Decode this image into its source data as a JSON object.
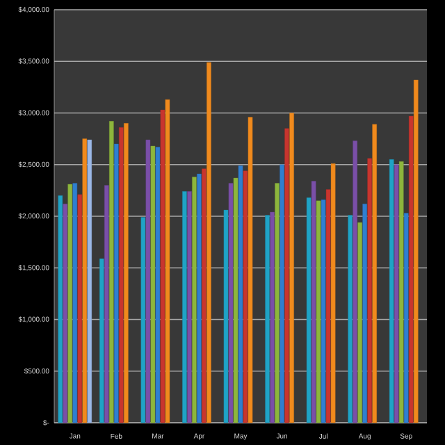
{
  "chart_data": {
    "type": "bar",
    "categories": [
      "Jan",
      "Feb",
      "Mar",
      "Apr",
      "May",
      "Jun",
      "Jul",
      "Aug",
      "Sep"
    ],
    "series": [
      {
        "color": "#1fa3c6",
        "values": [
          2200,
          1590,
          1990,
          2240,
          2060,
          2010,
          2180,
          2010,
          2550
        ]
      },
      {
        "color": "#7a4fa8",
        "values": [
          2120,
          2300,
          2740,
          2240,
          2320,
          2040,
          2340,
          2730,
          2500
        ]
      },
      {
        "color": "#8db63c",
        "values": [
          2310,
          2920,
          2680,
          2380,
          2370,
          2320,
          2150,
          1940,
          2530
        ]
      },
      {
        "color": "#2f7fd0",
        "values": [
          2320,
          2700,
          2670,
          2410,
          2490,
          2500,
          2160,
          2120,
          2030
        ]
      },
      {
        "color": "#c8352e",
        "values": [
          2210,
          2860,
          3030,
          2460,
          2440,
          2850,
          2260,
          2560,
          2970
        ]
      },
      {
        "color": "#f08a1d",
        "values": [
          2750,
          2900,
          3130,
          3490,
          2960,
          3000,
          2510,
          2890,
          3320
        ]
      },
      {
        "color": "#9bb7e6",
        "values": [
          2740,
          null,
          null,
          null,
          null,
          null,
          null,
          null,
          null
        ]
      }
    ],
    "ylim": [
      0,
      4000
    ],
    "yticks": [
      {
        "value": 0,
        "label": "$-"
      },
      {
        "value": 500,
        "label": "$500.00"
      },
      {
        "value": 1000,
        "label": "$1,000.00"
      },
      {
        "value": 1500,
        "label": "$1,500.00"
      },
      {
        "value": 2000,
        "label": "$2,000.00"
      },
      {
        "value": 2500,
        "label": "$2,500.00"
      },
      {
        "value": 3000,
        "label": "$3,000.00"
      },
      {
        "value": 3500,
        "label": "$3,500.00"
      },
      {
        "value": 4000,
        "label": "$4,000.00"
      }
    ],
    "grid": "y"
  }
}
